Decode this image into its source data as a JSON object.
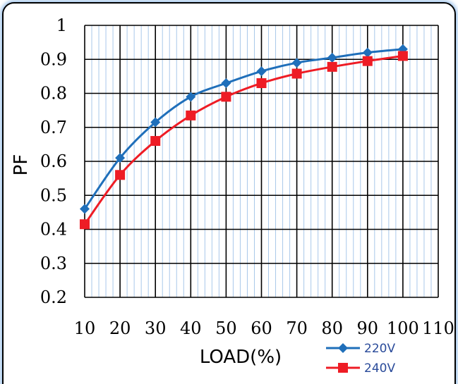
{
  "chart_data": {
    "type": "line",
    "title": "",
    "xlabel": "LOAD(%)",
    "ylabel": "PF",
    "x": [
      10,
      20,
      30,
      40,
      50,
      60,
      70,
      80,
      90,
      100
    ],
    "xlim": [
      10,
      110
    ],
    "ylim": [
      0.2,
      1
    ],
    "x_ticks": [
      "10",
      "20",
      "30",
      "40",
      "50",
      "60",
      "70",
      "80",
      "90",
      "100",
      "110"
    ],
    "y_ticks": [
      "1",
      "0.9",
      "0.8",
      "0.7",
      "0.6",
      "0.5",
      "0.4",
      "0.3",
      "0.2"
    ],
    "grid": true,
    "legend_position": "bottom-right",
    "series": [
      {
        "name": "220V",
        "color": "#1f6fba",
        "marker": "diamond",
        "values": [
          0.46,
          0.61,
          0.715,
          0.79,
          0.83,
          0.865,
          0.89,
          0.905,
          0.92,
          0.93
        ]
      },
      {
        "name": "240V",
        "color": "#ee1c25",
        "marker": "square",
        "values": [
          0.415,
          0.56,
          0.66,
          0.735,
          0.79,
          0.83,
          0.858,
          0.878,
          0.895,
          0.91
        ]
      }
    ]
  }
}
